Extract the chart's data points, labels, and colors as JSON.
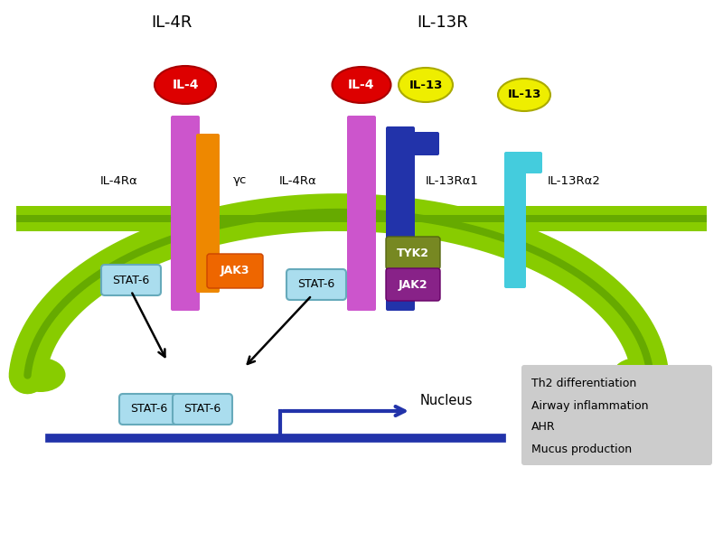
{
  "title_il4r": "IL-4R",
  "title_il13r": "IL-13R",
  "bg_color": "#ffffff",
  "membrane_color": "#88cc00",
  "membrane_edge": "#66aa00",
  "il4_color": "#dd0000",
  "il4_text_color": "#ffffff",
  "il13_color": "#eeee00",
  "il13_text_color": "#000000",
  "il4ra_color": "#cc55cc",
  "gamma_c_color": "#ee8800",
  "jak3_color": "#ee6600",
  "il13ra1_color": "#2233aa",
  "il13ra2_color": "#44ccdd",
  "tyk2_color": "#778822",
  "jak2_color": "#882288",
  "stat6_color": "#aaddee",
  "stat6_edge": "#66aabb",
  "stat6_text": "STAT-6",
  "dna_color": "#2233aa",
  "nucleus_label": "Nucleus",
  "outcome_box_color": "#cccccc",
  "outcomes": [
    "Th2 differentiation",
    "Airway inflammation",
    "AHR",
    "Mucus production"
  ]
}
